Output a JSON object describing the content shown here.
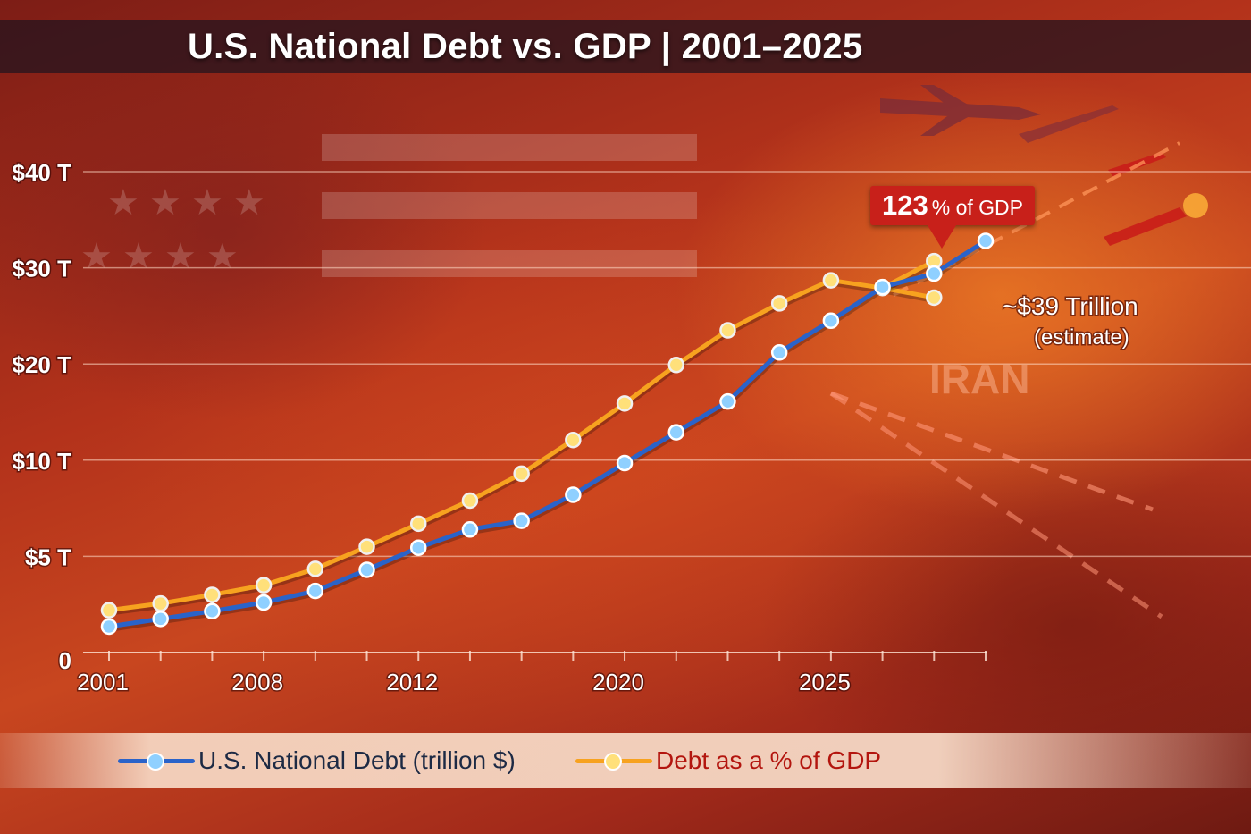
{
  "title": "U.S. National Debt vs. GDP | 2001–2025",
  "colors": {
    "debt_line": "#2a63c9",
    "debt_marker": "#8fd0ff",
    "gdp_line": "#f7a21f",
    "gdp_marker": "#ffe07a",
    "callout_bg": "#c8201a",
    "gdp_label": "#b3150e",
    "debt_label": "#1d2a44"
  },
  "annotations": {
    "gdp_callout": {
      "number": "123",
      "text": "% of GDP"
    },
    "estimate": {
      "main": "~$39 Trillion",
      "sub": "(estimate)"
    }
  },
  "background_labels": {
    "country": "IRAN"
  },
  "legend": [
    {
      "series": "debt",
      "label": "U.S. National Debt (trillion $)",
      "icon": "blue-line-dot-icon"
    },
    {
      "series": "gdp",
      "label": "Debt as a % of GDP",
      "icon": "orange-line-dot-icon"
    }
  ],
  "chart_data": {
    "type": "line",
    "title": "U.S. National Debt vs. GDP | 2001–2025",
    "y_tick_labels": [
      "0",
      "$5 T",
      "$10 T",
      "$20 T",
      "$30 T",
      "$40 T"
    ],
    "y_tick_positions": [
      0,
      1,
      2,
      3,
      4,
      5
    ],
    "x_tick_labels": [
      "2001",
      "2008",
      "2012",
      "2020",
      "2025"
    ],
    "x_tick_positions": [
      0,
      3,
      6,
      10,
      14
    ],
    "x_index_range": [
      0,
      17
    ],
    "y_index_range": [
      0,
      5
    ],
    "grid": true,
    "x": [
      0,
      1,
      2,
      3,
      4,
      5,
      6,
      7,
      8,
      9,
      10,
      11,
      12,
      13,
      14,
      15,
      16,
      17
    ],
    "series": [
      {
        "name": "U.S. National Debt (trillion $)",
        "key": "debt",
        "values": [
          0.27,
          0.35,
          0.43,
          0.52,
          0.64,
          0.86,
          1.09,
          1.28,
          1.37,
          1.64,
          1.97,
          2.29,
          2.61,
          3.12,
          3.45,
          3.8,
          3.94,
          4.28
        ]
      },
      {
        "name": "Debt as a % of GDP",
        "key": "gdp",
        "values": [
          0.44,
          0.51,
          0.6,
          0.7,
          0.87,
          1.1,
          1.34,
          1.58,
          1.86,
          2.21,
          2.59,
          2.99,
          3.35,
          3.63,
          3.87,
          3.79,
          3.69,
          null
        ]
      },
      {
        "name": "Debt as a % of GDP (branch)",
        "key": "gdp_branch",
        "values": [
          null,
          null,
          null,
          null,
          null,
          null,
          null,
          null,
          null,
          null,
          null,
          null,
          null,
          null,
          null,
          null,
          4.07,
          null
        ]
      }
    ]
  }
}
